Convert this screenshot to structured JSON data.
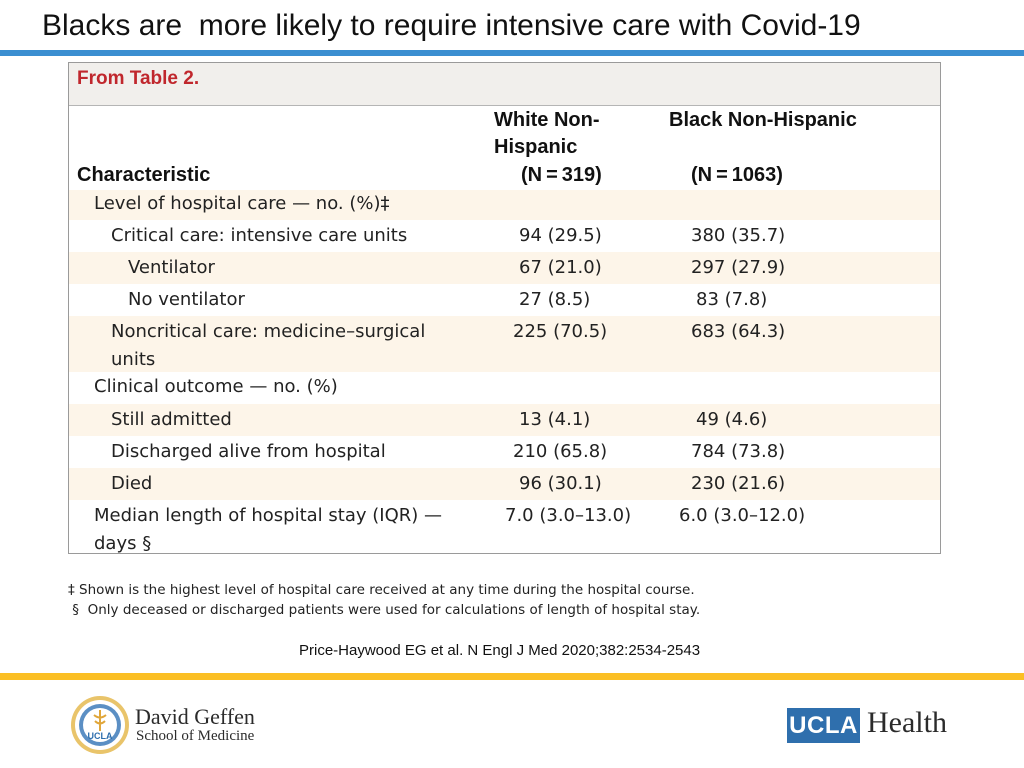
{
  "slide": {
    "title": "Blacks are  more likely to require intensive care with Covid-19"
  },
  "table": {
    "caption": "From Table 2.",
    "headers": {
      "characteristic": "Characteristic",
      "white_line1": "White Non-",
      "white_line2": "Hispanic",
      "white_n": "(N = 319)",
      "black_line1": "Black Non-Hispanic",
      "black_n": "(N = 1063)"
    },
    "rows": [
      {
        "label": "Level of hospital care — no. (%)‡",
        "white": "",
        "black": ""
      },
      {
        "label": "Critical care: intensive care units",
        "white": "94 (29.5)",
        "black": "380 (35.7)"
      },
      {
        "label": "Ventilator",
        "white": "67 (21.0)",
        "black": "297 (27.9)"
      },
      {
        "label": "No ventilator",
        "white": "27 (8.5)",
        "black": "83 (7.8)"
      },
      {
        "label": "Noncritical care: medicine–surgical units",
        "white": "225 (70.5)",
        "black": "683 (64.3)"
      },
      {
        "label": "Clinical outcome — no. (%)",
        "white": "",
        "black": ""
      },
      {
        "label": "Still admitted",
        "white": "13 (4.1)",
        "black": "49 (4.6)"
      },
      {
        "label": "Discharged alive from hospital",
        "white": "210 (65.8)",
        "black": "784 (73.8)"
      },
      {
        "label": "Died",
        "white": "96 (30.1)",
        "black": "230 (21.6)"
      },
      {
        "label": "Median length of hospital stay (IQR) — days §",
        "white": "7.0 (3.0–13.0)",
        "black": "6.0 (3.0–12.0)"
      }
    ]
  },
  "footnotes": {
    "note1": "‡ Shown is the highest level of hospital care received at any time during the hospital course.",
    "note2": " §  Only deceased or discharged patients were used for calculations of length of hospital stay."
  },
  "citation": "Price-Haywood EG et al. N Engl J Med 2020;382:2534-2543",
  "logos": {
    "dgsom_name": "David Geffen",
    "dgsom_school": "School of Medicine",
    "dgsom_seal_text": "UCLA",
    "ucla_box": "UCLA",
    "ucla_health": "Health"
  },
  "colors": {
    "title_rule": "#3b8fd1",
    "footer_rule": "#fbbf24",
    "caption_red": "#c0272d",
    "row_shade": "#fdf5e9",
    "ucla_blue": "#2f6fad"
  }
}
